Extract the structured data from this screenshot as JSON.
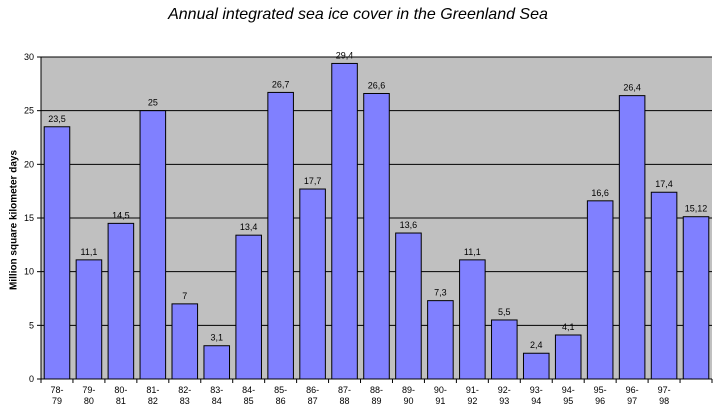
{
  "chart_data": {
    "type": "bar",
    "title": "Annual integrated sea ice cover in the Greenland Sea",
    "ylabel": "Million square kilometer days",
    "xlabel": "",
    "ylim": [
      0,
      30
    ],
    "yticks": [
      0,
      5,
      10,
      15,
      20,
      25,
      30
    ],
    "grid": true,
    "categories": [
      [
        "78-",
        "79"
      ],
      [
        "79-",
        "80"
      ],
      [
        "80-",
        "81"
      ],
      [
        "81-",
        "82"
      ],
      [
        "82-",
        "83"
      ],
      [
        "83-",
        "84"
      ],
      [
        "84-",
        "85"
      ],
      [
        "85-",
        "86"
      ],
      [
        "86-",
        "87"
      ],
      [
        "87-",
        "88"
      ],
      [
        "88-",
        "89"
      ],
      [
        "89-",
        "90"
      ],
      [
        "90-",
        "91"
      ],
      [
        "91-",
        "92"
      ],
      [
        "92-",
        "93"
      ],
      [
        "93-",
        "94"
      ],
      [
        "94-",
        "95"
      ],
      [
        "95-",
        "96"
      ],
      [
        "96-",
        "97"
      ],
      [
        "97-",
        "98"
      ],
      [
        "",
        ""
      ]
    ],
    "values": [
      23.5,
      11.1,
      14.5,
      25,
      7,
      3.1,
      13.4,
      26.7,
      17.7,
      29.4,
      26.6,
      13.6,
      7.3,
      11.1,
      5.5,
      2.4,
      4.1,
      16.6,
      26.4,
      17.4,
      15.12
    ],
    "value_labels": [
      "23,5",
      "11,1",
      "14,5",
      "25",
      "7",
      "3,1",
      "13,4",
      "26,7",
      "17,7",
      "29,4",
      "26,6",
      "13,6",
      "7,3",
      "11,1",
      "5,5",
      "2,4",
      "4,1",
      "16,6",
      "26,4",
      "17,4",
      "15,12"
    ],
    "colors": {
      "bar_fill": "#8080ff",
      "bar_stroke": "#000000",
      "plot_bg": "#c0c0c0",
      "gridline": "#000000"
    }
  }
}
